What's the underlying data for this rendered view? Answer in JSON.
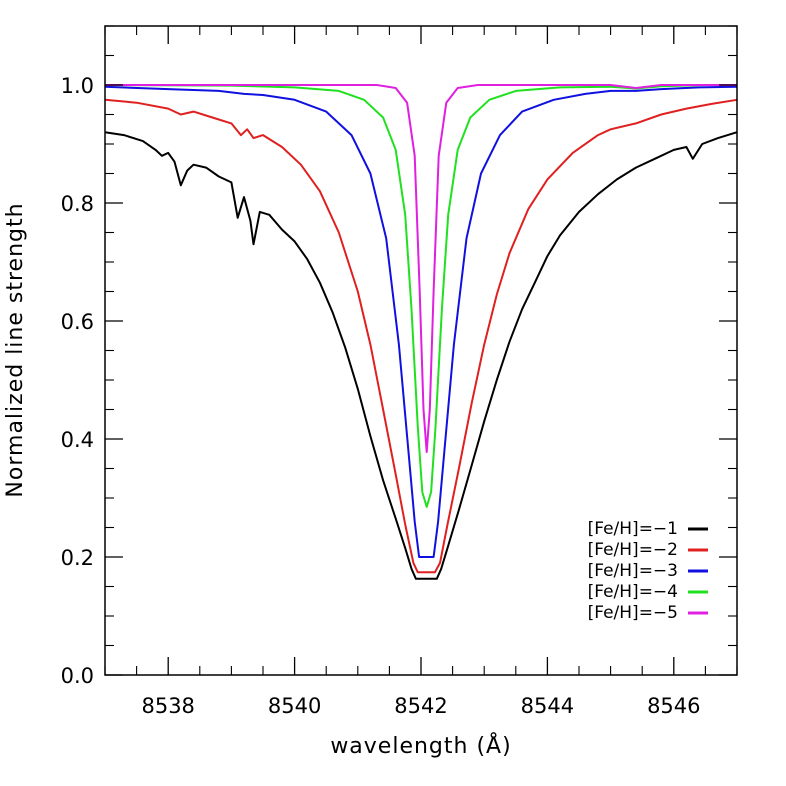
{
  "chart_data": {
    "type": "line",
    "xlabel": "wavelength (Å)",
    "ylabel": "Normalized line strength",
    "xlim": [
      8537,
      8547
    ],
    "ylim": [
      0.0,
      1.1
    ],
    "x_ticks": [
      8538,
      8540,
      8542,
      8544,
      8546
    ],
    "x_tick_labels": [
      "8538",
      "8540",
      "8542",
      "8544",
      "8546"
    ],
    "x_minor_step": 0.5,
    "y_ticks": [
      0.0,
      0.2,
      0.4,
      0.6,
      0.8,
      1.0
    ],
    "y_tick_labels": [
      "0.0",
      "0.2",
      "0.4",
      "0.6",
      "0.8",
      "1.0"
    ],
    "y_minor_step": 0.05,
    "grid": false,
    "legend_position": "bottom-right",
    "line_center": 8542.09,
    "series": [
      {
        "name": "[Fe/H]=−1",
        "color": "#000000",
        "points": [
          [
            8537.0,
            0.92
          ],
          [
            8537.3,
            0.915
          ],
          [
            8537.6,
            0.905
          ],
          [
            8537.8,
            0.89
          ],
          [
            8537.9,
            0.88
          ],
          [
            8538.0,
            0.885
          ],
          [
            8538.1,
            0.87
          ],
          [
            8538.2,
            0.83
          ],
          [
            8538.3,
            0.855
          ],
          [
            8538.4,
            0.865
          ],
          [
            8538.6,
            0.86
          ],
          [
            8538.8,
            0.845
          ],
          [
            8539.0,
            0.835
          ],
          [
            8539.1,
            0.775
          ],
          [
            8539.2,
            0.81
          ],
          [
            8539.3,
            0.77
          ],
          [
            8539.35,
            0.73
          ],
          [
            8539.45,
            0.785
          ],
          [
            8539.6,
            0.78
          ],
          [
            8539.8,
            0.755
          ],
          [
            8540.0,
            0.735
          ],
          [
            8540.2,
            0.705
          ],
          [
            8540.4,
            0.665
          ],
          [
            8540.6,
            0.615
          ],
          [
            8540.8,
            0.555
          ],
          [
            8541.0,
            0.485
          ],
          [
            8541.2,
            0.405
          ],
          [
            8541.4,
            0.33
          ],
          [
            8541.6,
            0.265
          ],
          [
            8541.75,
            0.215
          ],
          [
            8541.85,
            0.18
          ],
          [
            8541.92,
            0.163
          ],
          [
            8542.25,
            0.163
          ],
          [
            8542.32,
            0.18
          ],
          [
            8542.42,
            0.215
          ],
          [
            8542.6,
            0.28
          ],
          [
            8542.8,
            0.355
          ],
          [
            8543.0,
            0.43
          ],
          [
            8543.2,
            0.5
          ],
          [
            8543.4,
            0.565
          ],
          [
            8543.6,
            0.62
          ],
          [
            8543.8,
            0.665
          ],
          [
            8544.0,
            0.71
          ],
          [
            8544.2,
            0.745
          ],
          [
            8544.5,
            0.785
          ],
          [
            8544.8,
            0.815
          ],
          [
            8545.1,
            0.84
          ],
          [
            8545.4,
            0.86
          ],
          [
            8545.7,
            0.875
          ],
          [
            8546.0,
            0.89
          ],
          [
            8546.2,
            0.895
          ],
          [
            8546.3,
            0.875
          ],
          [
            8546.45,
            0.9
          ],
          [
            8546.7,
            0.91
          ],
          [
            8547.0,
            0.92
          ]
        ]
      },
      {
        "name": "[Fe/H]=−2",
        "color": "#e02020",
        "points": [
          [
            8537.0,
            0.975
          ],
          [
            8537.5,
            0.97
          ],
          [
            8538.0,
            0.96
          ],
          [
            8538.2,
            0.95
          ],
          [
            8538.4,
            0.955
          ],
          [
            8538.7,
            0.945
          ],
          [
            8539.0,
            0.935
          ],
          [
            8539.15,
            0.915
          ],
          [
            8539.25,
            0.925
          ],
          [
            8539.35,
            0.91
          ],
          [
            8539.5,
            0.915
          ],
          [
            8539.8,
            0.895
          ],
          [
            8540.1,
            0.865
          ],
          [
            8540.4,
            0.82
          ],
          [
            8540.7,
            0.75
          ],
          [
            8541.0,
            0.65
          ],
          [
            8541.2,
            0.56
          ],
          [
            8541.4,
            0.45
          ],
          [
            8541.6,
            0.34
          ],
          [
            8541.75,
            0.255
          ],
          [
            8541.88,
            0.19
          ],
          [
            8541.95,
            0.174
          ],
          [
            8542.22,
            0.174
          ],
          [
            8542.3,
            0.19
          ],
          [
            8542.42,
            0.255
          ],
          [
            8542.6,
            0.35
          ],
          [
            8542.8,
            0.46
          ],
          [
            8543.0,
            0.56
          ],
          [
            8543.2,
            0.645
          ],
          [
            8543.4,
            0.715
          ],
          [
            8543.7,
            0.79
          ],
          [
            8544.0,
            0.84
          ],
          [
            8544.4,
            0.885
          ],
          [
            8544.8,
            0.915
          ],
          [
            8545.0,
            0.925
          ],
          [
            8545.4,
            0.935
          ],
          [
            8545.8,
            0.95
          ],
          [
            8546.2,
            0.96
          ],
          [
            8546.6,
            0.968
          ],
          [
            8547.0,
            0.975
          ]
        ]
      },
      {
        "name": "[Fe/H]=−3",
        "color": "#1010e0",
        "points": [
          [
            8537.0,
            0.997
          ],
          [
            8538.0,
            0.993
          ],
          [
            8538.8,
            0.99
          ],
          [
            8539.2,
            0.985
          ],
          [
            8539.5,
            0.983
          ],
          [
            8540.0,
            0.975
          ],
          [
            8540.5,
            0.955
          ],
          [
            8540.9,
            0.915
          ],
          [
            8541.2,
            0.85
          ],
          [
            8541.45,
            0.74
          ],
          [
            8541.65,
            0.56
          ],
          [
            8541.8,
            0.38
          ],
          [
            8541.9,
            0.26
          ],
          [
            8541.97,
            0.2
          ],
          [
            8542.2,
            0.2
          ],
          [
            8542.27,
            0.26
          ],
          [
            8542.37,
            0.38
          ],
          [
            8542.52,
            0.56
          ],
          [
            8542.72,
            0.74
          ],
          [
            8542.95,
            0.85
          ],
          [
            8543.25,
            0.915
          ],
          [
            8543.6,
            0.955
          ],
          [
            8544.1,
            0.975
          ],
          [
            8544.6,
            0.985
          ],
          [
            8545.0,
            0.99
          ],
          [
            8545.4,
            0.99
          ],
          [
            8545.8,
            0.993
          ],
          [
            8546.4,
            0.996
          ],
          [
            8547.0,
            0.997
          ]
        ]
      },
      {
        "name": "[Fe/H]=−4",
        "color": "#20e020",
        "points": [
          [
            8537.0,
            1.0
          ],
          [
            8539.0,
            0.999
          ],
          [
            8540.0,
            0.996
          ],
          [
            8540.7,
            0.99
          ],
          [
            8541.1,
            0.975
          ],
          [
            8541.4,
            0.945
          ],
          [
            8541.6,
            0.89
          ],
          [
            8541.75,
            0.78
          ],
          [
            8541.85,
            0.62
          ],
          [
            8541.95,
            0.42
          ],
          [
            8542.02,
            0.31
          ],
          [
            8542.09,
            0.285
          ],
          [
            8542.16,
            0.31
          ],
          [
            8542.23,
            0.42
          ],
          [
            8542.33,
            0.62
          ],
          [
            8542.43,
            0.78
          ],
          [
            8542.58,
            0.89
          ],
          [
            8542.78,
            0.945
          ],
          [
            8543.08,
            0.975
          ],
          [
            8543.5,
            0.99
          ],
          [
            8544.2,
            0.996
          ],
          [
            8545.0,
            0.997
          ],
          [
            8545.4,
            0.994
          ],
          [
            8545.8,
            0.998
          ],
          [
            8546.5,
            1.0
          ],
          [
            8547.0,
            1.0
          ]
        ]
      },
      {
        "name": "[Fe/H]=−5",
        "color": "#e020e0",
        "points": [
          [
            8537.0,
            1.0
          ],
          [
            8541.3,
            1.0
          ],
          [
            8541.6,
            0.995
          ],
          [
            8541.78,
            0.97
          ],
          [
            8541.9,
            0.88
          ],
          [
            8541.98,
            0.65
          ],
          [
            8542.04,
            0.45
          ],
          [
            8542.09,
            0.378
          ],
          [
            8542.14,
            0.45
          ],
          [
            8542.2,
            0.65
          ],
          [
            8542.28,
            0.88
          ],
          [
            8542.4,
            0.97
          ],
          [
            8542.58,
            0.995
          ],
          [
            8542.9,
            1.0
          ],
          [
            8545.0,
            1.0
          ],
          [
            8545.4,
            0.995
          ],
          [
            8545.8,
            1.0
          ],
          [
            8547.0,
            1.0
          ]
        ]
      }
    ]
  }
}
